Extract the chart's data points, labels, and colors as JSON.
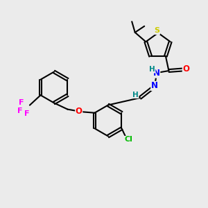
{
  "background_color": "#ebebeb",
  "figure_size": [
    3.0,
    3.0
  ],
  "dpi": 100,
  "atom_colors": {
    "S": "#cccc00",
    "N": "#0000ff",
    "O": "#ff0000",
    "Cl": "#00bb00",
    "F": "#ff00ff",
    "C": "#000000",
    "H": "#008888"
  },
  "bond_color": "#000000",
  "bond_width": 1.5
}
